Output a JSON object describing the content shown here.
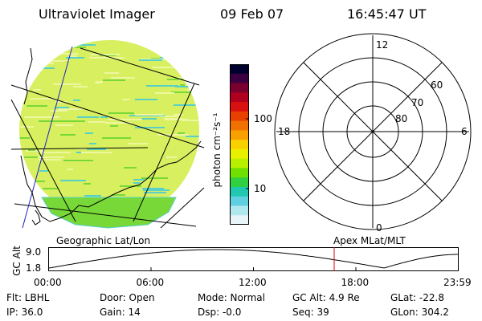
{
  "header": {
    "instrument": "Ultraviolet Imager",
    "date": "09 Feb 07",
    "time": "16:45:47 UT"
  },
  "colorbar": {
    "unit_label": "photon cm⁻²s⁻¹",
    "tick_100": "100",
    "tick_10": "10",
    "colors": [
      "#000030",
      "#3a0040",
      "#7a0030",
      "#b00020",
      "#d81010",
      "#e84000",
      "#f07000",
      "#f8a000",
      "#f8d000",
      "#e8f000",
      "#b8f000",
      "#70e000",
      "#30d040",
      "#20c8b0",
      "#60d0e0",
      "#b0e8f0",
      "#e8f4f8"
    ]
  },
  "polar": {
    "label_top": "12",
    "label_left": "18",
    "label_right": "6",
    "label_bottom": "0",
    "ring_60": "60",
    "ring_70": "70",
    "ring_80": "80"
  },
  "strip": {
    "left_title": "Geographic Lat/Lon",
    "right_title": "Apex MLat/MLT",
    "ylabel": "GC Alt",
    "ytick_top": "9.0",
    "ytick_bottom": "1.8",
    "xticks": [
      "00:00",
      "06:00",
      "12:00",
      "18:00",
      "23:59"
    ],
    "line_color": "#000000",
    "marker_color": "#dd0000"
  },
  "info": {
    "flt": "Flt: LBHL",
    "ip": "IP: 36.0",
    "door": "Door: Open",
    "gain": "Gain: 14",
    "mode": "Mode: Normal",
    "dsp": "Dsp:   -0.0",
    "gcalt": "GC Alt: 4.9 Re",
    "seq": "Seq: 39",
    "glat": "GLat: -22.8",
    "glon": "GLon: 304.2"
  },
  "image_colors": {
    "base": "#d8f060",
    "pale": "#eef6a0",
    "green": "#78d838",
    "cyan": "#58d0c8"
  }
}
